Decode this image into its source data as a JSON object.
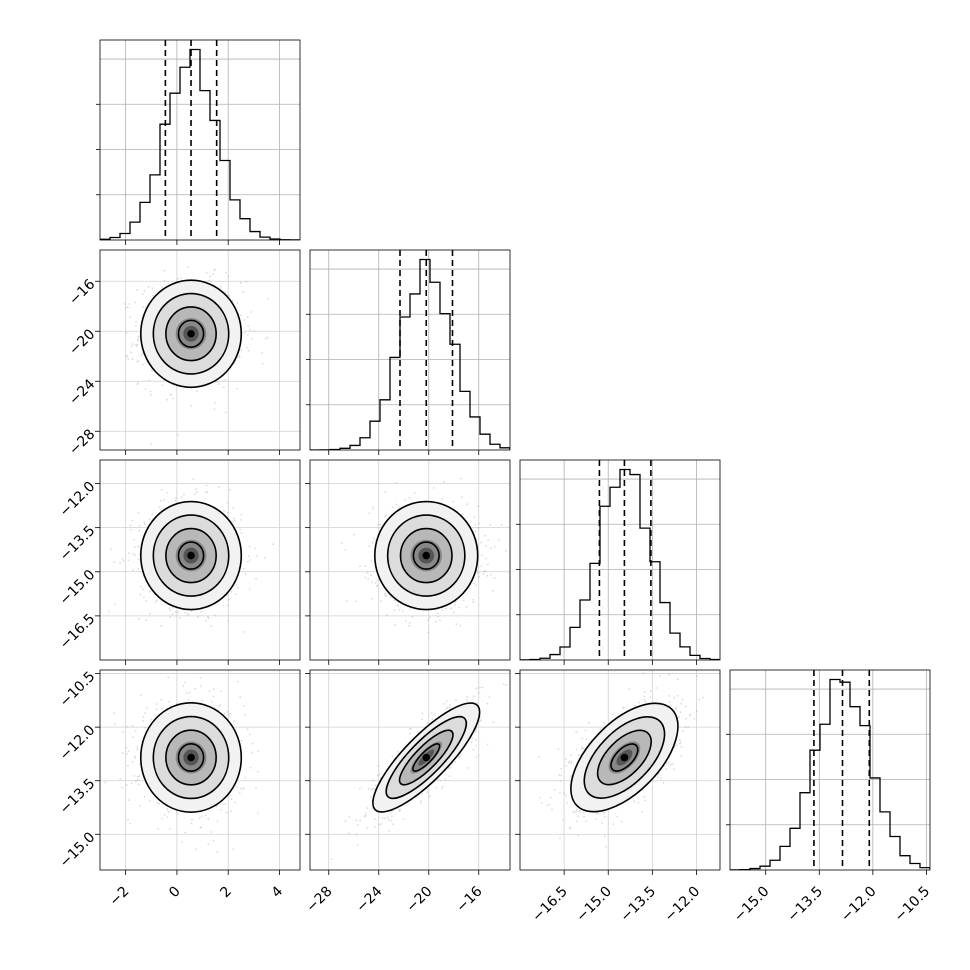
{
  "chart_data": {
    "type": "corner",
    "grid": true,
    "params": [
      {
        "index": 0,
        "range": [
          -3.0,
          4.8
        ],
        "quantiles": [
          -0.45,
          0.55,
          1.55
        ],
        "ticks": [
          -2,
          0,
          2,
          4
        ],
        "tick_labels": [
          "−2",
          "0",
          "2",
          "4"
        ]
      },
      {
        "index": 1,
        "range": [
          -29.5,
          -13.5
        ],
        "quantiles": [
          -22.3,
          -20.2,
          -18.1
        ],
        "ticks": [
          -28,
          -24,
          -20,
          -16
        ],
        "tick_labels": [
          "−28",
          "−24",
          "−20",
          "−16"
        ]
      },
      {
        "index": 2,
        "range": [
          -18.0,
          -11.2
        ],
        "quantiles": [
          -15.3,
          -14.45,
          -13.55
        ],
        "ticks": [
          -16.5,
          -15.0,
          -13.5,
          -12.0
        ],
        "tick_labels": [
          "−16.5",
          "−15.0",
          "−13.5",
          "−12.0"
        ]
      },
      {
        "index": 3,
        "range": [
          -16.0,
          -10.4
        ],
        "quantiles": [
          -13.65,
          -12.85,
          -12.1
        ],
        "ticks": [
          -15.0,
          -13.5,
          -12.0,
          -10.5
        ],
        "tick_labels": [
          "−15.0",
          "−13.5",
          "−12.0",
          "−10.5"
        ]
      }
    ],
    "pairs": [
      {
        "x": 0,
        "y": 1,
        "mean": [
          0.55,
          -20.2
        ],
        "sd": [
          1.0,
          2.1
        ],
        "rho": 0.0
      },
      {
        "x": 0,
        "y": 2,
        "mean": [
          0.55,
          -14.45
        ],
        "sd": [
          1.0,
          0.9
        ],
        "rho": 0.0
      },
      {
        "x": 1,
        "y": 2,
        "mean": [
          -20.2,
          -14.45
        ],
        "sd": [
          2.1,
          0.9
        ],
        "rho": 0.0
      },
      {
        "x": 0,
        "y": 3,
        "mean": [
          0.55,
          -12.85
        ],
        "sd": [
          1.0,
          0.75
        ],
        "rho": 0.0
      },
      {
        "x": 1,
        "y": 3,
        "mean": [
          -20.2,
          -12.85
        ],
        "sd": [
          2.1,
          0.75
        ],
        "rho": 0.82
      },
      {
        "x": 2,
        "y": 3,
        "mean": [
          -14.45,
          -12.85
        ],
        "sd": [
          0.9,
          0.75
        ],
        "rho": 0.55
      }
    ],
    "contour_levels_sigma": [
      0.5,
      1.0,
      1.5,
      2.0
    ]
  }
}
